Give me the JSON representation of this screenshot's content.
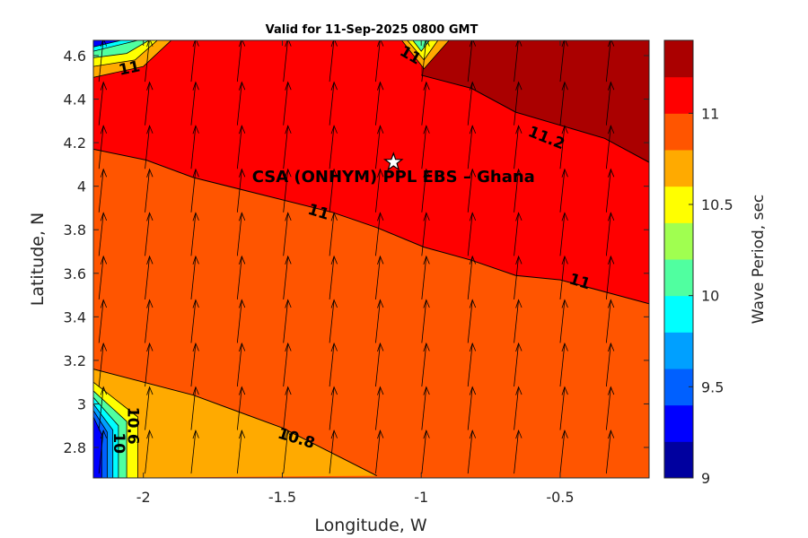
{
  "chart_data": {
    "type": "contour",
    "title": "Valid for 11-Sep-2025 0800 GMT",
    "xlabel": "Longitude, W",
    "ylabel": "Latitude, N",
    "colorbar_label": "Wave Period, sec",
    "xlim": [
      -2.18,
      -0.18
    ],
    "ylim": [
      2.66,
      4.67
    ],
    "x_ticks": [
      -2,
      -1.5,
      -1,
      -0.5
    ],
    "x_tick_labels": [
      "-2",
      "-1.5",
      "-1",
      "-0.5"
    ],
    "y_ticks": [
      2.8,
      3,
      3.2,
      3.4,
      3.6,
      3.8,
      4,
      4.2,
      4.4,
      4.6
    ],
    "y_tick_labels": [
      "2.8",
      "3",
      "3.2",
      "3.4",
      "3.6",
      "3.8",
      "4",
      "4.2",
      "4.4",
      "4.6"
    ],
    "colorbar": {
      "range": [
        9,
        11.4
      ],
      "ticks": [
        9,
        9.5,
        10,
        10.5,
        11
      ],
      "tick_labels": [
        "9",
        "9.5",
        "10",
        "10.5",
        "11"
      ],
      "colors": [
        "#00009f",
        "#0000ff",
        "#0060ff",
        "#00a0ff",
        "#00ffff",
        "#50ffa0",
        "#a0ff50",
        "#ffff00",
        "#ffaa00",
        "#ff5500",
        "#ff0000",
        "#aa0000"
      ]
    },
    "region_colors": {
      "p11_2": "#aa0000",
      "p11_0": "#ff0000",
      "p10_8": "#ff5500",
      "p10_6": "#ffaa00"
    },
    "contours": [
      {
        "level": 11.2,
        "label": "11.2",
        "points": [
          [
            -1.0,
            4.51
          ],
          [
            -0.82,
            4.45
          ],
          [
            -0.66,
            4.34
          ],
          [
            -0.34,
            4.22
          ],
          [
            -0.18,
            4.11
          ]
        ]
      },
      {
        "level": 11.0,
        "label": "11",
        "points": [
          [
            -2.18,
            4.17
          ],
          [
            -1.99,
            4.12
          ],
          [
            -1.82,
            4.04
          ],
          [
            -1.32,
            3.88
          ],
          [
            -1.16,
            3.81
          ],
          [
            -0.99,
            3.72
          ],
          [
            -0.82,
            3.66
          ],
          [
            -0.66,
            3.59
          ],
          [
            -0.5,
            3.57
          ],
          [
            -0.18,
            3.46
          ]
        ]
      },
      {
        "level": 10.8,
        "label": "10.8",
        "points": [
          [
            -2.18,
            3.16
          ],
          [
            -1.82,
            3.04
          ],
          [
            -1.5,
            2.89
          ],
          [
            -1.16,
            2.67
          ]
        ]
      }
    ],
    "contour_labels": [
      {
        "text": "11.2",
        "x": -0.55,
        "y": 4.22
      },
      {
        "text": "11",
        "x": -1.37,
        "y": 3.88
      },
      {
        "text": "11",
        "x": -0.43,
        "y": 3.56
      },
      {
        "text": "11",
        "x": -2.05,
        "y": 4.54
      },
      {
        "text": "11",
        "x": -1.04,
        "y": 4.6
      },
      {
        "text": "10.8",
        "x": -1.45,
        "y": 2.84
      },
      {
        "text": "10.6",
        "x": -2.04,
        "y": 2.9
      },
      {
        "text": "10",
        "x": -2.09,
        "y": 2.82
      }
    ],
    "arrows": {
      "direction": "north, slightly east",
      "spacing_lon": 0.166,
      "spacing_lat": 0.2
    },
    "annotation": {
      "text": "CSA (ONHYM) PPL EBS  – Ghana",
      "marker": "star",
      "x": -1.1,
      "y": 4.11
    }
  }
}
